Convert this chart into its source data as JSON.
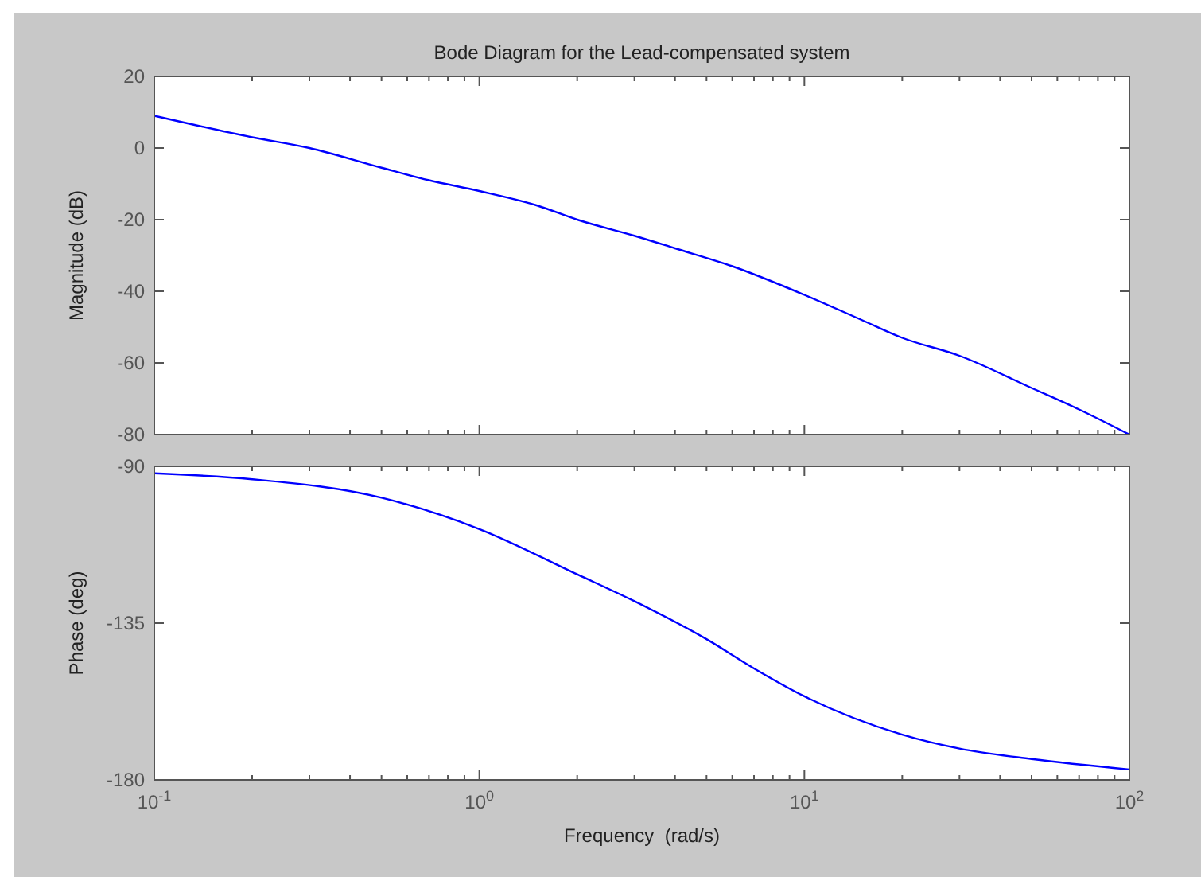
{
  "chart_data": [
    {
      "type": "line",
      "title": "Bode Diagram for the Lead-compensated system",
      "ylabel": "Magnitude (dB)",
      "log": "x",
      "tick_labels": "y",
      "grid": false,
      "x": [
        0.1,
        0.2,
        0.3,
        0.5,
        0.7,
        1,
        1.5,
        2,
        3,
        4,
        6,
        10,
        15,
        20,
        30,
        50,
        70,
        100
      ],
      "series": [
        {
          "color": "#0000ff",
          "values": [
            9,
            3,
            0,
            -5.5,
            -9,
            -12,
            -16,
            -20,
            -24.5,
            -28,
            -33,
            -41,
            -48,
            -53,
            -58,
            -67,
            -73,
            -80
          ]
        }
      ],
      "xlim": [
        0.1,
        100
      ],
      "ylim": [
        -80,
        20
      ],
      "yticks": [
        -80,
        -60,
        -40,
        -20,
        0,
        20
      ],
      "xticks": [
        {
          "value": 0.1,
          "label": null
        },
        {
          "value": 0.2,
          "label": null
        },
        {
          "value": 0.3,
          "label": null
        },
        {
          "value": 0.4,
          "label": null
        },
        {
          "value": 0.5,
          "label": null
        },
        {
          "value": 0.6,
          "label": null
        },
        {
          "value": 0.7,
          "label": null
        },
        {
          "value": 0.8,
          "label": null
        },
        {
          "value": 0.9,
          "label": null
        },
        {
          "value": 1,
          "label": null
        },
        {
          "value": 2,
          "label": null
        },
        {
          "value": 3,
          "label": null
        },
        {
          "value": 4,
          "label": null
        },
        {
          "value": 5,
          "label": null
        },
        {
          "value": 6,
          "label": null
        },
        {
          "value": 7,
          "label": null
        },
        {
          "value": 8,
          "label": null
        },
        {
          "value": 9,
          "label": null
        },
        {
          "value": 10,
          "label": null
        },
        {
          "value": 20,
          "label": null
        },
        {
          "value": 30,
          "label": null
        },
        {
          "value": 40,
          "label": null
        },
        {
          "value": 50,
          "label": null
        },
        {
          "value": 60,
          "label": null
        },
        {
          "value": 70,
          "label": null
        },
        {
          "value": 80,
          "label": null
        },
        {
          "value": 90,
          "label": null
        },
        {
          "value": 100,
          "label": null
        }
      ]
    },
    {
      "type": "line",
      "xlabel": "Frequency  (rad/s)",
      "ylabel": "Phase (deg)",
      "log": "x",
      "grid": false,
      "x": [
        0.1,
        0.2,
        0.5,
        1,
        2,
        3,
        5,
        7,
        10,
        20,
        30,
        50,
        100
      ],
      "series": [
        {
          "color": "#0000ff",
          "values": [
            -92,
            -93.7,
            -99,
            -108,
            -121,
            -128.7,
            -139.6,
            -148,
            -156,
            -167,
            -171,
            -174,
            -177
          ]
        }
      ],
      "xlim": [
        0.1,
        100
      ],
      "ylim": [
        -180,
        -90
      ],
      "yticks": [
        -180,
        -135,
        -90
      ],
      "xticks": [
        {
          "value": 0.1,
          "label": "10$^{-1}$"
        },
        {
          "value": 0.2,
          "label": null
        },
        {
          "value": 0.3,
          "label": null
        },
        {
          "value": 0.4,
          "label": null
        },
        {
          "value": 0.5,
          "label": null
        },
        {
          "value": 0.6,
          "label": null
        },
        {
          "value": 0.7,
          "label": null
        },
        {
          "value": 0.8,
          "label": null
        },
        {
          "value": 0.9,
          "label": null
        },
        {
          "value": 1,
          "label": "10$^{0}$"
        },
        {
          "value": 2,
          "label": null
        },
        {
          "value": 3,
          "label": null
        },
        {
          "value": 4,
          "label": null
        },
        {
          "value": 5,
          "label": null
        },
        {
          "value": 6,
          "label": null
        },
        {
          "value": 7,
          "label": null
        },
        {
          "value": 8,
          "label": null
        },
        {
          "value": 9,
          "label": null
        },
        {
          "value": 10,
          "label": "10$^{1}$"
        },
        {
          "value": 20,
          "label": null
        },
        {
          "value": 30,
          "label": null
        },
        {
          "value": 40,
          "label": null
        },
        {
          "value": 50,
          "label": null
        },
        {
          "value": 60,
          "label": null
        },
        {
          "value": 70,
          "label": null
        },
        {
          "value": 80,
          "label": null
        },
        {
          "value": 90,
          "label": null
        },
        {
          "value": 100,
          "label": "10$^{2}$"
        }
      ]
    }
  ]
}
